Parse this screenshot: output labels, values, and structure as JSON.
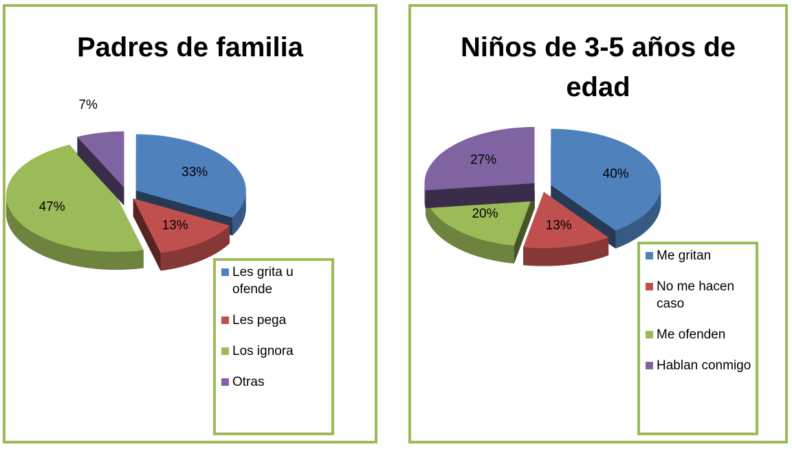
{
  "chart_data": [
    {
      "type": "pie",
      "title": "Padres de familia",
      "categories": [
        "Les grita u ofende",
        "Les pega",
        "Los ignora",
        "Otras"
      ],
      "values": [
        33,
        13,
        47,
        7
      ],
      "value_labels": [
        "33%",
        "13%",
        "47%",
        "7%"
      ],
      "colors": [
        "#4f81bd",
        "#c0504d",
        "#9bbb59",
        "#8064a2"
      ]
    },
    {
      "type": "pie",
      "title": "Niños de 3-5 años de edad",
      "categories": [
        "Me gritan",
        "No me hacen caso",
        "Me ofenden",
        "Hablan conmigo"
      ],
      "values": [
        40,
        13,
        20,
        27
      ],
      "value_labels": [
        "40%",
        "13%",
        "20%",
        "27%"
      ],
      "colors": [
        "#4f81bd",
        "#c0504d",
        "#9bbb59",
        "#8064a2"
      ]
    }
  ]
}
